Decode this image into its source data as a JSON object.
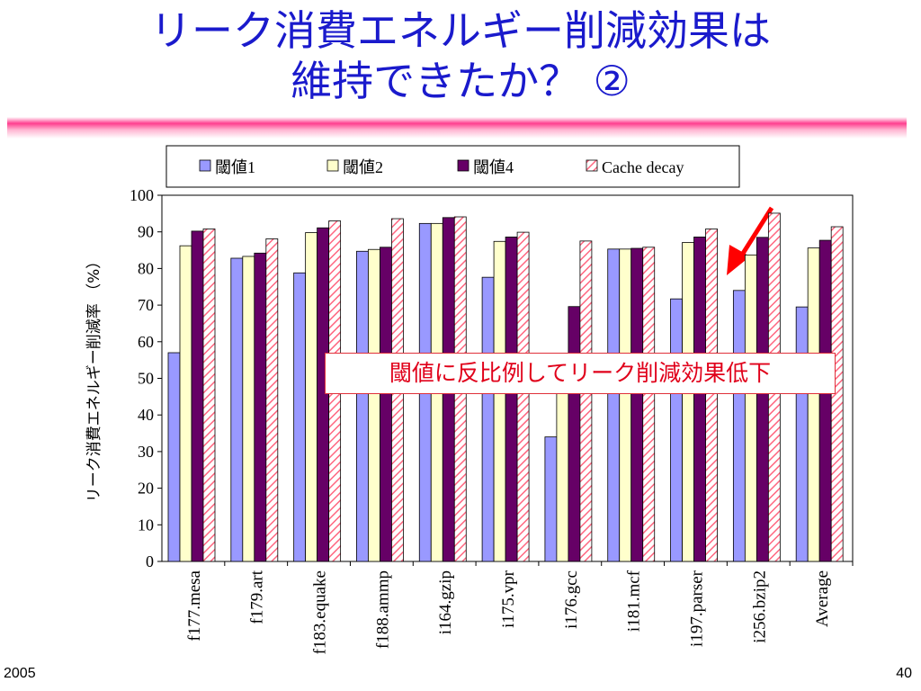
{
  "slide": {
    "title_line1": "リーク消費エネルギー削減効果は",
    "title_line2": "維持できたか？ ②",
    "callout": "閾値に反比例してリーク削減効果低下",
    "footer_left": "2005",
    "page_number": "40"
  },
  "chart_data": {
    "type": "bar",
    "ylabel": "リーク消費エネルギー削減率 （%）",
    "ylim": [
      0,
      100
    ],
    "yticks": [
      "0",
      "10",
      "20",
      "30",
      "40",
      "50",
      "60",
      "70",
      "80",
      "90",
      "100"
    ],
    "grid": false,
    "legend_position": "top",
    "categories": [
      "f177.mesa",
      "f179.art",
      "f183.equake",
      "f188.ammp",
      "i164.gzip",
      "i175.vpr",
      "i176.gcc",
      "i181.mcf",
      "i197.parser",
      "i256.bzip2",
      "Average"
    ],
    "series": [
      {
        "name": "閾値1",
        "color": "#9999ff",
        "values": [
          57,
          82.8,
          78.8,
          84.7,
          92.3,
          77.6,
          34,
          85.3,
          71.7,
          74,
          69.5
        ]
      },
      {
        "name": "閾値2",
        "color": "#ffffcc",
        "values": [
          86.2,
          83.3,
          89.8,
          85.2,
          92.3,
          87.4,
          48,
          85.3,
          87.1,
          83.7,
          85.6
        ]
      },
      {
        "name": "閾値4",
        "color": "#660066",
        "values": [
          90.2,
          84.2,
          91.1,
          85.8,
          93.9,
          88.6,
          69.6,
          85.5,
          88.6,
          88.5,
          87.7
        ]
      },
      {
        "name": "Cache decay",
        "color": "#ff6680",
        "pattern": "diagonal-hatch",
        "values": [
          90.8,
          88.1,
          93,
          93.6,
          94.1,
          89.9,
          87.5,
          85.8,
          90.8,
          95.1,
          91.4
        ]
      }
    ]
  }
}
